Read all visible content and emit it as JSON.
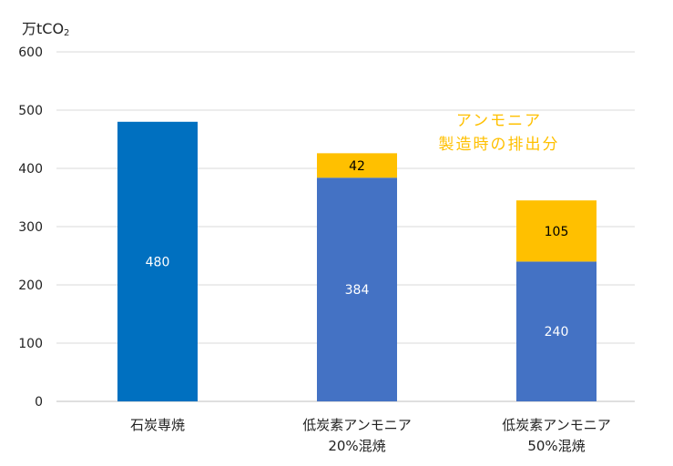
{
  "chart_data": {
    "type": "bar",
    "stacked": true,
    "y_unit": {
      "prefix": "万tCO",
      "subscript": "2"
    },
    "ylim": [
      0,
      600
    ],
    "y_ticks": [
      0,
      100,
      200,
      300,
      400,
      500,
      600
    ],
    "grid": true,
    "categories": [
      [
        "石炭専焼"
      ],
      [
        "低炭素アンモニア",
        "20%混焼"
      ],
      [
        "低炭素アンモニア",
        "50%混焼"
      ]
    ],
    "series": [
      {
        "values": [
          480,
          384,
          240
        ],
        "colors": [
          "#0070C0",
          "#4472C4",
          "#4472C4"
        ]
      },
      {
        "values": [
          null,
          42,
          105
        ],
        "colors": [
          "#FFC000",
          "#FFC000",
          "#FFC000"
        ]
      }
    ],
    "annotation": [
      "アンモニア",
      "製造時の排出分"
    ],
    "annotation_color": "#FFC000",
    "label_colors": {
      "on_blue": "#ffffff",
      "on_orange": "#000000"
    },
    "gridline_color": "#d9d9d9",
    "axis_text_color": "#222222"
  }
}
